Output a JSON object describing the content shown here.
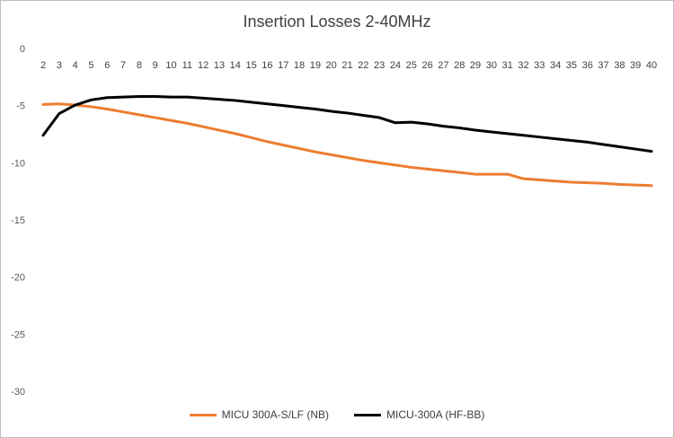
{
  "chart_data": {
    "type": "line",
    "title": "Insertion Losses 2-40MHz",
    "xlabel": "",
    "ylabel": "",
    "x": [
      2,
      3,
      4,
      5,
      6,
      7,
      8,
      9,
      10,
      11,
      12,
      13,
      14,
      15,
      16,
      17,
      18,
      19,
      20,
      21,
      22,
      23,
      24,
      25,
      26,
      27,
      28,
      29,
      30,
      31,
      32,
      33,
      34,
      35,
      36,
      37,
      38,
      39,
      40
    ],
    "ylim": [
      -30,
      0
    ],
    "yticks": [
      0,
      -5,
      -10,
      -15,
      -20,
      -25,
      -30
    ],
    "grid": false,
    "legend_position": "bottom",
    "series": [
      {
        "name": "MICU 300A-S/LF (NB)",
        "color": "#ed7d31",
        "values": [
          -4.9,
          -4.85,
          -4.95,
          -5.1,
          -5.3,
          -5.55,
          -5.8,
          -6.05,
          -6.3,
          -6.55,
          -6.85,
          -7.15,
          -7.45,
          -7.8,
          -8.15,
          -8.45,
          -8.75,
          -9.05,
          -9.3,
          -9.55,
          -9.8,
          -10.0,
          -10.2,
          -10.4,
          -10.55,
          -10.7,
          -10.85,
          -11.0,
          -11.0,
          -11.0,
          -11.4,
          -11.5,
          -11.6,
          -11.7,
          -11.75,
          -11.8,
          -11.9,
          -11.95,
          -12.0
        ]
      },
      {
        "name": "MICU-300A (HF-BB)",
        "color": "#000000",
        "values": [
          -7.6,
          -5.7,
          -4.95,
          -4.5,
          -4.3,
          -4.25,
          -4.2,
          -4.2,
          -4.25,
          -4.25,
          -4.35,
          -4.45,
          -4.55,
          -4.7,
          -4.85,
          -5.0,
          -5.15,
          -5.3,
          -5.5,
          -5.65,
          -5.85,
          -6.05,
          -6.5,
          -6.45,
          -6.6,
          -6.8,
          -6.95,
          -7.15,
          -7.3,
          -7.45,
          -7.6,
          -7.75,
          -7.9,
          -8.05,
          -8.2,
          -8.4,
          -8.6,
          -8.8,
          -9.0
        ]
      }
    ]
  }
}
